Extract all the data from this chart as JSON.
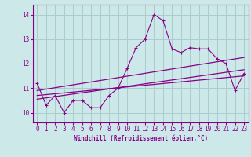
{
  "xlabel": "Windchill (Refroidissement éolien,°C)",
  "background_color": "#cce8e8",
  "grid_color": "#aacccc",
  "line_color": "#880088",
  "xlim": [
    -0.5,
    23.5
  ],
  "ylim": [
    9.6,
    14.4
  ],
  "yticks": [
    10,
    11,
    12,
    13,
    14
  ],
  "xticks": [
    0,
    1,
    2,
    3,
    4,
    5,
    6,
    7,
    8,
    9,
    10,
    11,
    12,
    13,
    14,
    15,
    16,
    17,
    18,
    19,
    20,
    21,
    22,
    23
  ],
  "main_line_x": [
    0,
    1,
    2,
    3,
    4,
    5,
    6,
    7,
    8,
    9,
    10,
    11,
    12,
    13,
    14,
    15,
    16,
    17,
    18,
    19,
    20,
    21,
    22,
    23
  ],
  "main_line_y": [
    11.2,
    10.3,
    10.7,
    10.0,
    10.5,
    10.5,
    10.2,
    10.2,
    10.7,
    11.0,
    11.8,
    12.65,
    13.0,
    14.0,
    13.75,
    12.6,
    12.45,
    12.65,
    12.6,
    12.6,
    12.2,
    12.0,
    10.9,
    11.6
  ],
  "reg_line1_x": [
    0,
    23
  ],
  "reg_line1_y": [
    10.9,
    12.25
  ],
  "reg_line2_x": [
    0,
    23
  ],
  "reg_line2_y": [
    10.55,
    11.75
  ],
  "reg_line3_x": [
    0,
    23
  ],
  "reg_line3_y": [
    10.7,
    11.5
  ]
}
